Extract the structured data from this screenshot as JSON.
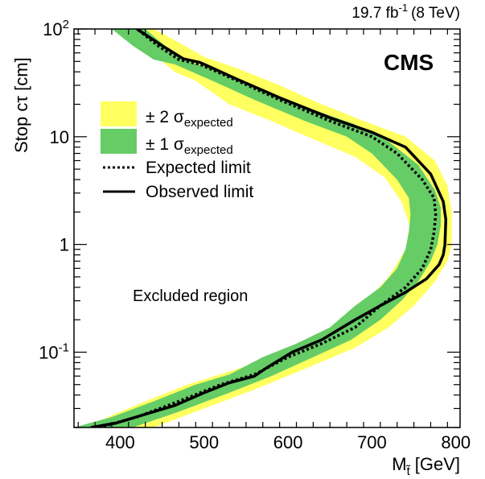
{
  "chart_data": {
    "type": "area",
    "experiment_label": "CMS",
    "lumi_label": {
      "value": "19.7 fb",
      "sup": "-1",
      "energy": "(8 TeV)"
    },
    "xlabel": {
      "main": "M",
      "sub": "t̃",
      "unit": "[GeV]"
    },
    "ylabel": "Stop cτ [cm]",
    "xlim": [
      345,
      805
    ],
    "ylim": [
      0.02,
      100
    ],
    "yscale": "log",
    "x_ticks": [
      400,
      500,
      600,
      700,
      800
    ],
    "x_tick_labels": [
      "400",
      "500",
      "600",
      "700",
      "800"
    ],
    "y_ticks": [
      {
        "value": 0.1,
        "base": "10",
        "exp": "-1"
      },
      {
        "value": 1,
        "base": "1",
        "exp": ""
      },
      {
        "value": 10,
        "base": "10",
        "exp": ""
      },
      {
        "value": 100,
        "base": "10",
        "exp": "2"
      }
    ],
    "annotation": "Excluded region",
    "legend": [
      {
        "key": "band2",
        "prefix": "± 2 σ",
        "sub": "expected",
        "color": "#ffff60"
      },
      {
        "key": "band1",
        "prefix": "± 1 σ",
        "sub": "expected",
        "color": "#66cc66"
      },
      {
        "key": "expected",
        "label": "Expected limit",
        "style": "dotted",
        "color": "#000000"
      },
      {
        "key": "observed",
        "label": "Observed limit",
        "style": "solid",
        "color": "#000000"
      }
    ],
    "series": [
      {
        "name": "Observed limit",
        "x": [
          365,
          395,
          440,
          465,
          500,
          530,
          560,
          575,
          605,
          640,
          680,
          710,
          740,
          765,
          780,
          785,
          787,
          788,
          785,
          770,
          740,
          700,
          650,
          590,
          540,
          495,
          475,
          450,
          420
        ],
        "y": [
          0.02,
          0.022,
          0.028,
          0.032,
          0.042,
          0.052,
          0.06,
          0.072,
          0.1,
          0.13,
          0.2,
          0.27,
          0.36,
          0.48,
          0.65,
          0.8,
          1.0,
          1.7,
          2.5,
          4.5,
          8,
          11,
          15,
          23,
          34,
          49,
          53,
          70,
          100
        ]
      },
      {
        "name": "Expected limit",
        "x": [
          375,
          420,
          470,
          520,
          560,
          600,
          640,
          680,
          710,
          740,
          760,
          770,
          774,
          776,
          774,
          760,
          730,
          700,
          650,
          590,
          540,
          495,
          470,
          445,
          420
        ],
        "y": [
          0.02,
          0.025,
          0.035,
          0.05,
          0.062,
          0.09,
          0.12,
          0.17,
          0.27,
          0.4,
          0.6,
          0.9,
          1.3,
          1.9,
          2.7,
          4.0,
          7,
          10,
          14,
          22,
          33,
          47,
          52,
          70,
          100
        ]
      }
    ],
    "bands": [
      {
        "name": "± 2 σ expected",
        "color": "#ffff60",
        "outer_x": [
          440,
          500,
          560,
          620,
          680,
          720,
          750,
          775,
          790,
          795,
          795,
          790,
          775,
          740,
          690,
          640,
          590,
          540,
          500,
          470,
          440
        ],
        "outer_y": [
          0.02,
          0.03,
          0.045,
          0.07,
          0.11,
          0.17,
          0.27,
          0.45,
          0.7,
          1.0,
          2.0,
          3.5,
          6,
          10,
          14,
          20,
          30,
          43,
          55,
          75,
          100
        ],
        "inner_x": [
          360,
          390,
          430,
          480,
          540,
          600,
          650,
          690,
          720,
          740,
          745,
          735,
          715,
          680,
          630,
          580,
          530,
          490,
          465,
          440,
          415
        ],
        "inner_y": [
          0.02,
          0.026,
          0.035,
          0.05,
          0.07,
          0.1,
          0.16,
          0.28,
          0.5,
          0.9,
          1.5,
          2.5,
          4.2,
          6.5,
          9.5,
          14,
          20,
          33,
          40,
          58,
          100
        ]
      },
      {
        "name": "± 1 σ expected",
        "color": "#66cc66",
        "outer_x": [
          415,
          470,
          530,
          580,
          630,
          675,
          710,
          735,
          755,
          770,
          778,
          782,
          782,
          775,
          755,
          720,
          680,
          620,
          560,
          510,
          480,
          455,
          430
        ],
        "outer_y": [
          0.02,
          0.028,
          0.042,
          0.06,
          0.09,
          0.13,
          0.2,
          0.3,
          0.45,
          0.7,
          1.0,
          1.5,
          2.2,
          3.2,
          5.5,
          9,
          13,
          19,
          28,
          43,
          50,
          68,
          100
        ]
      }
    ]
  }
}
